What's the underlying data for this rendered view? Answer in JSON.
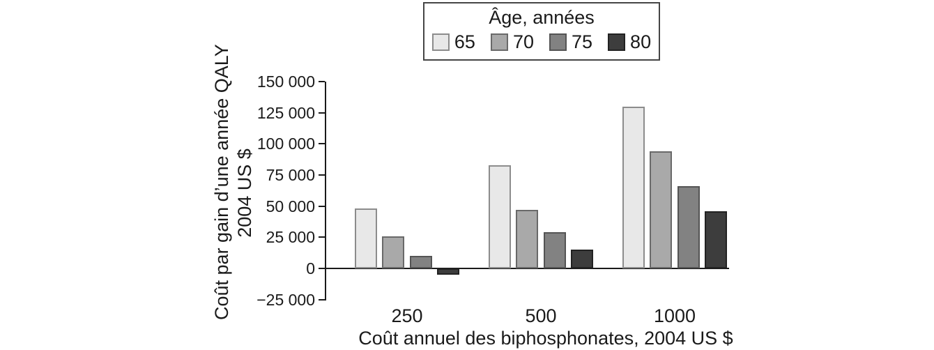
{
  "legend": {
    "title": "Âge, années",
    "items": [
      {
        "label": "65",
        "color": "#e8e8e8",
        "border": "#8c8c8c"
      },
      {
        "label": "70",
        "color": "#a9a9a9",
        "border": "#696969"
      },
      {
        "label": "75",
        "color": "#828282",
        "border": "#545454"
      },
      {
        "label": "80",
        "color": "#3d3d3d",
        "border": "#222222"
      }
    ]
  },
  "chart_data": {
    "type": "bar",
    "title": "",
    "categories": [
      "250",
      "500",
      "1000"
    ],
    "series": [
      {
        "name": "65",
        "color": "#e8e8e8",
        "border": "#8c8c8c",
        "values": [
          48000,
          83000,
          130000
        ]
      },
      {
        "name": "70",
        "color": "#a9a9a9",
        "border": "#696969",
        "values": [
          26000,
          47000,
          94000
        ]
      },
      {
        "name": "75",
        "color": "#828282",
        "border": "#545454",
        "values": [
          10000,
          29000,
          66000
        ]
      },
      {
        "name": "80",
        "color": "#3d3d3d",
        "border": "#222222",
        "values": [
          -5000,
          15000,
          46000
        ]
      }
    ],
    "xlabel": "Coût annuel des biphosphonates, 2004 US $",
    "ylabel_line1": "Coût par gain d’une année QALY",
    "ylabel_line2": "2004 US $",
    "ylim": [
      -25000,
      150000
    ],
    "ytick_step": 25000,
    "ytick_labels": [
      "150 000",
      "125 000",
      "100 000",
      "75 000",
      "50 000",
      "25 000",
      "0",
      "−25 000"
    ],
    "grid": false,
    "legend_position": "top",
    "axis_color": "#1a1a1a"
  }
}
